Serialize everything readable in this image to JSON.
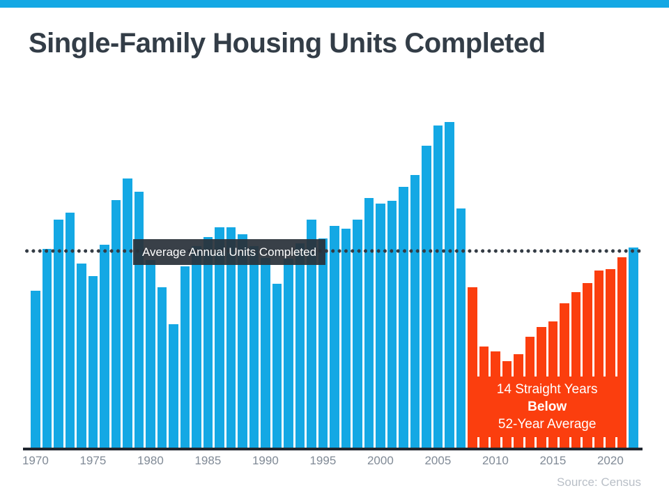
{
  "page": {
    "title": "Single-Family Housing Units Completed",
    "source": "Source: Census"
  },
  "chart_data": {
    "type": "bar",
    "title": "Single-Family Housing Units Completed",
    "unit": "thousands of units (estimated from average line)",
    "x": [
      1970,
      1971,
      1972,
      1973,
      1974,
      1975,
      1976,
      1977,
      1978,
      1979,
      1980,
      1981,
      1982,
      1983,
      1984,
      1985,
      1986,
      1987,
      1988,
      1989,
      1990,
      1991,
      1992,
      1993,
      1994,
      1995,
      1996,
      1997,
      1998,
      1999,
      2000,
      2001,
      2002,
      2003,
      2004,
      2005,
      2006,
      2007,
      2008,
      2009,
      2010,
      2011,
      2012,
      2013,
      2014,
      2015,
      2016,
      2017,
      2018,
      2019,
      2020,
      2021,
      2022
    ],
    "values": [
      802,
      1014,
      1160,
      1197,
      940,
      875,
      1034,
      1258,
      1369,
      1301,
      957,
      819,
      632,
      924,
      1025,
      1072,
      1120,
      1123,
      1085,
      1026,
      966,
      838,
      964,
      1039,
      1160,
      1066,
      1129,
      1116,
      1160,
      1270,
      1242,
      1256,
      1325,
      1386,
      1532,
      1636,
      1654,
      1218,
      819,
      520,
      496,
      447,
      483,
      569,
      620,
      648,
      738,
      795,
      840,
      903,
      912,
      970,
      1019
    ],
    "x_tick_labels": [
      "1970",
      "1975",
      "1980",
      "1985",
      "1990",
      "1995",
      "2000",
      "2005",
      "2010",
      "2015",
      "2020"
    ],
    "bar_color": "#14a8e4",
    "highlight_color": "#fb3e0e",
    "highlight_years": {
      "start": 2008,
      "end": 2021
    },
    "average_line": {
      "label": "Average Annual Units Completed",
      "value": 1009,
      "style": "dotted",
      "color": "#333b44"
    },
    "annotation": {
      "line1": "14 Straight Years",
      "line2": "Below",
      "line3": "52-Year Average"
    },
    "legend": "none",
    "grid": "off",
    "source": "Source: Census"
  }
}
